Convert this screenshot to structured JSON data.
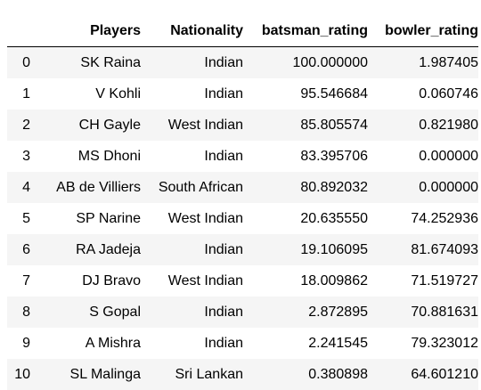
{
  "table": {
    "index_header": "",
    "columns": [
      "Players",
      "Nationality",
      "batsman_rating",
      "bowler_rating"
    ],
    "rows": [
      {
        "index": "0",
        "Players": "SK Raina",
        "Nationality": "Indian",
        "batsman_rating": "100.000000",
        "bowler_rating": "1.987405"
      },
      {
        "index": "1",
        "Players": "V Kohli",
        "Nationality": "Indian",
        "batsman_rating": "95.546684",
        "bowler_rating": "0.060746"
      },
      {
        "index": "2",
        "Players": "CH Gayle",
        "Nationality": "West Indian",
        "batsman_rating": "85.805574",
        "bowler_rating": "0.821980"
      },
      {
        "index": "3",
        "Players": "MS Dhoni",
        "Nationality": "Indian",
        "batsman_rating": "83.395706",
        "bowler_rating": "0.000000"
      },
      {
        "index": "4",
        "Players": "AB de Villiers",
        "Nationality": "South African",
        "batsman_rating": "80.892032",
        "bowler_rating": "0.000000"
      },
      {
        "index": "5",
        "Players": "SP Narine",
        "Nationality": "West Indian",
        "batsman_rating": "20.635550",
        "bowler_rating": "74.252936"
      },
      {
        "index": "6",
        "Players": "RA Jadeja",
        "Nationality": "Indian",
        "batsman_rating": "19.106095",
        "bowler_rating": "81.674093"
      },
      {
        "index": "7",
        "Players": "DJ Bravo",
        "Nationality": "West Indian",
        "batsman_rating": "18.009862",
        "bowler_rating": "71.519727"
      },
      {
        "index": "8",
        "Players": "S Gopal",
        "Nationality": "Indian",
        "batsman_rating": "2.872895",
        "bowler_rating": "70.881631"
      },
      {
        "index": "9",
        "Players": "A Mishra",
        "Nationality": "Indian",
        "batsman_rating": "2.241545",
        "bowler_rating": "79.323012"
      },
      {
        "index": "10",
        "Players": "SL Malinga",
        "Nationality": "Sri Lankan",
        "batsman_rating": "0.380898",
        "bowler_rating": "64.601210"
      }
    ]
  }
}
